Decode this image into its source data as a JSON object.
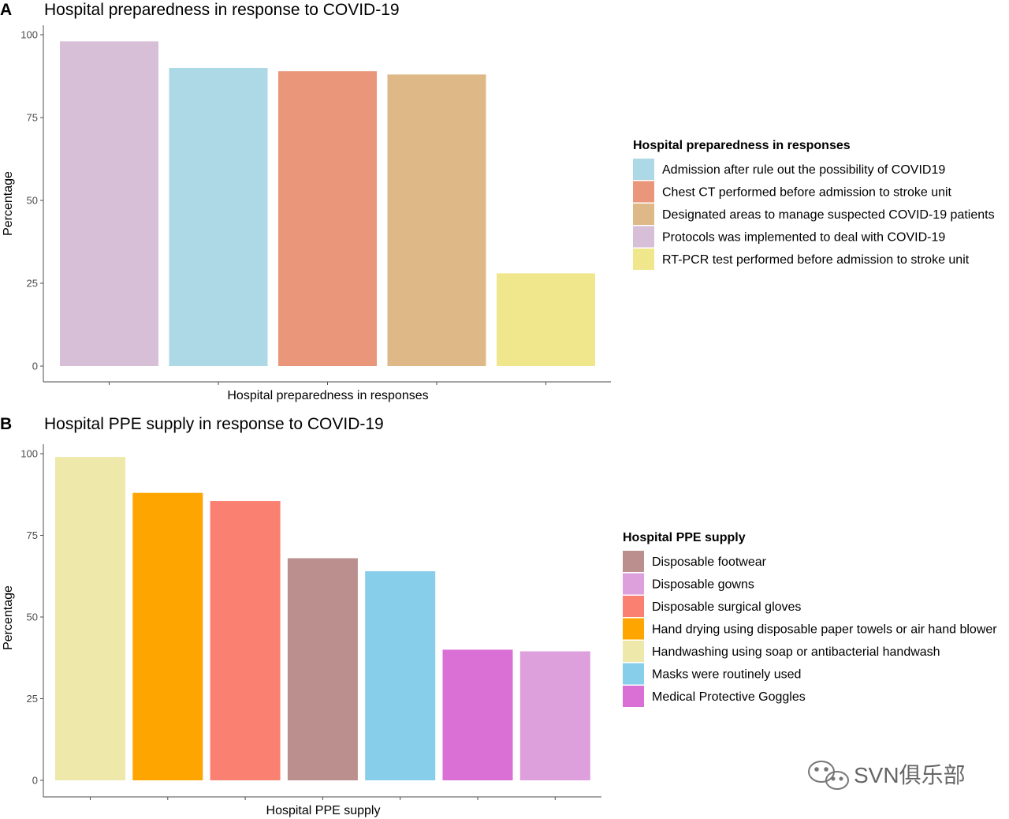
{
  "chart_data": [
    {
      "type": "bar",
      "panel": "A",
      "title": "Hospital preparedness in response to COVID-19",
      "xlabel": "Hospital preparedness in responses",
      "ylabel": "Percentage",
      "ylim": [
        0,
        100
      ],
      "yticks": [
        0,
        25,
        50,
        75,
        100
      ],
      "categories": [
        "Protocols was implemented to deal with COVID-19",
        "Admission after rule out the possibility of COVID19",
        "Chest CT performed before admission to stroke unit",
        "Designated areas to manage suspected COVID-19 patients",
        "RT-PCR test performed before admission to stroke unit"
      ],
      "values": [
        98,
        90,
        89,
        88,
        28
      ],
      "colors": [
        "#d8bfd8",
        "#add8e6",
        "#e9967a",
        "#deb887",
        "#f0e68c"
      ],
      "legend": {
        "title": "Hospital preparedness in responses",
        "entries": [
          {
            "label": "Admission after rule out the possibility of COVID19",
            "color": "#add8e6"
          },
          {
            "label": "Chest CT performed before admission to stroke unit",
            "color": "#e9967a"
          },
          {
            "label": "Designated areas to manage suspected COVID-19 patients",
            "color": "#deb887"
          },
          {
            "label": "Protocols was implemented to deal with COVID-19",
            "color": "#d8bfd8"
          },
          {
            "label": "RT-PCR test performed before admission to stroke unit",
            "color": "#f0e68c"
          }
        ]
      }
    },
    {
      "type": "bar",
      "panel": "B",
      "title": "Hospital PPE supply in response to COVID-19",
      "xlabel": "Hospital PPE supply",
      "ylabel": "Percentage",
      "ylim": [
        0,
        100
      ],
      "yticks": [
        0,
        25,
        50,
        75,
        100
      ],
      "categories": [
        "Handwashing using soap or antibacterial handwash",
        "Hand drying using disposable paper towels or air hand blower",
        "Disposable surgical gloves",
        "Disposable footwear",
        "Masks were routinely used",
        "Medical Protective Goggles",
        "Disposable gowns"
      ],
      "values": [
        99,
        88,
        85.5,
        68,
        64,
        40,
        39.5
      ],
      "colors": [
        "#eee8aa",
        "#ffa500",
        "#fa8072",
        "#bc8f8f",
        "#87ceeb",
        "#da70d6",
        "#dda0dd"
      ],
      "legend": {
        "title": "Hospital PPE supply",
        "entries": [
          {
            "label": "Disposable footwear",
            "color": "#bc8f8f"
          },
          {
            "label": "Disposable gowns",
            "color": "#dda0dd"
          },
          {
            "label": "Disposable surgical gloves",
            "color": "#fa8072"
          },
          {
            "label": "Hand drying using disposable paper towels or air hand blower",
            "color": "#ffa500"
          },
          {
            "label": "Handwashing using soap or antibacterial handwash",
            "color": "#eee8aa"
          },
          {
            "label": "Masks were routinely used",
            "color": "#87ceeb"
          },
          {
            "label": "Medical Protective Goggles",
            "color": "#da70d6"
          }
        ]
      }
    }
  ],
  "watermark": {
    "text": "SVN俱乐部",
    "icon": "wechat-icon"
  }
}
